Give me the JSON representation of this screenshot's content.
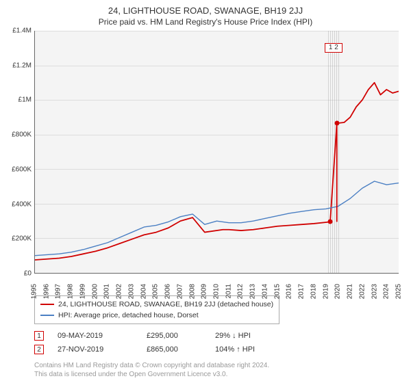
{
  "title": "24, LIGHTHOUSE ROAD, SWANAGE, BH19 2JJ",
  "subtitle": "Price paid vs. HM Land Registry's House Price Index (HPI)",
  "chart": {
    "type": "line",
    "background_color": "#f4f4f4",
    "axis_color": "#666666",
    "grid_color": "#dcdcdc",
    "text_color": "#333333",
    "ylim": [
      0,
      1400000
    ],
    "yticks": [
      0,
      200000,
      400000,
      600000,
      800000,
      1000000,
      1200000,
      1400000
    ],
    "ytick_labels": [
      "£0",
      "£200K",
      "£400K",
      "£600K",
      "£800K",
      "£1M",
      "£1.2M",
      "£1.4M"
    ],
    "xlim": [
      1995,
      2025
    ],
    "xticks": [
      1995,
      1996,
      1997,
      1998,
      1999,
      2000,
      2001,
      2002,
      2003,
      2004,
      2005,
      2006,
      2007,
      2008,
      2009,
      2010,
      2011,
      2012,
      2013,
      2014,
      2015,
      2016,
      2017,
      2018,
      2019,
      2020,
      2021,
      2022,
      2023,
      2024,
      2025
    ],
    "label_fontsize": 10,
    "title_fontsize": 13,
    "subtitle_fontsize": 12,
    "series": [
      {
        "name": "property",
        "label": "24, LIGHTHOUSE ROAD, SWANAGE, BH19 2JJ (detached house)",
        "color": "#d00000",
        "line_width": 1.8,
        "x": [
          1995,
          1996,
          1997,
          1998,
          1999,
          2000,
          2001,
          2002,
          2003,
          2004,
          2005,
          2006,
          2007,
          2008,
          2009,
          2010.5,
          2011,
          2012,
          2013,
          2014,
          2015,
          2016,
          2017,
          2018,
          2019.35,
          2019.9,
          2020.5,
          2021,
          2021.5,
          2022,
          2022.5,
          2023,
          2023.5,
          2024,
          2024.5,
          2025
        ],
        "y": [
          75000,
          80000,
          85000,
          95000,
          110000,
          125000,
          145000,
          170000,
          195000,
          220000,
          235000,
          260000,
          300000,
          320000,
          235000,
          250000,
          250000,
          245000,
          250000,
          260000,
          270000,
          275000,
          280000,
          285000,
          295000,
          865000,
          870000,
          900000,
          960000,
          1000000,
          1060000,
          1100000,
          1030000,
          1060000,
          1040000,
          1050000
        ]
      },
      {
        "name": "hpi",
        "label": "HPI: Average price, detached house, Dorset",
        "color": "#4a7fc3",
        "line_width": 1.4,
        "x": [
          1995,
          1996,
          1997,
          1998,
          1999,
          2000,
          2001,
          2002,
          2003,
          2004,
          2005,
          2006,
          2007,
          2008,
          2009,
          2010,
          2011,
          2012,
          2013,
          2014,
          2015,
          2016,
          2017,
          2018,
          2019,
          2020,
          2021,
          2022,
          2023,
          2024,
          2025
        ],
        "y": [
          100000,
          105000,
          110000,
          120000,
          135000,
          155000,
          175000,
          205000,
          235000,
          265000,
          275000,
          295000,
          325000,
          340000,
          280000,
          300000,
          290000,
          290000,
          300000,
          315000,
          330000,
          345000,
          355000,
          365000,
          370000,
          385000,
          430000,
          490000,
          530000,
          510000,
          520000
        ]
      }
    ],
    "hatch_band": {
      "x_start": 2019.2,
      "x_end": 2020.1
    },
    "sale_markers": [
      {
        "num": "1",
        "x": 2019.35,
        "y": 295000,
        "box_y": 1330000,
        "joined_num": "1 2"
      },
      {
        "num": "2",
        "x": 2019.9,
        "y": 865000,
        "box_y": 1330000
      }
    ]
  },
  "legend": {
    "items": [
      {
        "swatch": "red",
        "label": "24, LIGHTHOUSE ROAD, SWANAGE, BH19 2JJ (detached house)"
      },
      {
        "swatch": "blue",
        "label": "HPI: Average price, detached house, Dorset"
      }
    ]
  },
  "sales": [
    {
      "num": "1",
      "date": "09-MAY-2019",
      "price": "£295,000",
      "pct": "29%",
      "dir": "down",
      "vs": "HPI"
    },
    {
      "num": "2",
      "date": "27-NOV-2019",
      "price": "£865,000",
      "pct": "104%",
      "dir": "up",
      "vs": "HPI"
    }
  ],
  "footer": {
    "line1": "Contains HM Land Registry data © Crown copyright and database right 2024.",
    "line2": "This data is licensed under the Open Government Licence v3.0."
  }
}
